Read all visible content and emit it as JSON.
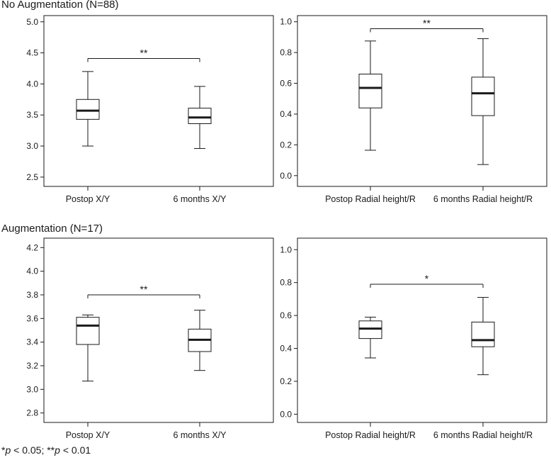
{
  "titles": {
    "top": "No Augmentation (N=88)",
    "bottom": "Augmentation (N=17)"
  },
  "footnote": {
    "star1": "*",
    "p1": "p",
    "t1": " < 0.05; **",
    "p2": "p",
    "t2": " < 0.01"
  },
  "colors": {
    "stroke": "#1a1a1a",
    "background": "#ffffff"
  },
  "chart_data": [
    {
      "type": "box",
      "panel": "top-left",
      "group": "No Augmentation (N=88)",
      "categories": [
        "Postop X/Y",
        "6 months X/Y"
      ],
      "boxes": [
        {
          "whisker_low": 3.0,
          "q1": 3.43,
          "median": 3.57,
          "q3": 3.75,
          "whisker_high": 4.2
        },
        {
          "whisker_low": 2.96,
          "q1": 3.36,
          "median": 3.46,
          "q3": 3.61,
          "whisker_high": 3.96
        }
      ],
      "ylim": [
        2.35,
        5.1
      ],
      "yticks": [
        "2.5",
        "3.0",
        "3.5",
        "4.0",
        "4.5",
        "5.0"
      ],
      "significance": {
        "label": "**",
        "y": 4.41
      }
    },
    {
      "type": "box",
      "panel": "top-right",
      "group": "No Augmentation (N=88)",
      "categories": [
        "Postop Radial height/R",
        "6 months Radial height/R"
      ],
      "boxes": [
        {
          "whisker_low": 0.165,
          "q1": 0.44,
          "median": 0.57,
          "q3": 0.66,
          "whisker_high": 0.875
        },
        {
          "whisker_low": 0.072,
          "q1": 0.39,
          "median": 0.535,
          "q3": 0.64,
          "whisker_high": 0.89
        }
      ],
      "ylim": [
        -0.07,
        1.04
      ],
      "yticks": [
        "0.0",
        "0.2",
        "0.4",
        "0.6",
        "0.8",
        "1.0"
      ],
      "significance": {
        "label": "**",
        "y": 0.955
      }
    },
    {
      "type": "box",
      "panel": "bottom-left",
      "group": "Augmentation (N=17)",
      "categories": [
        "Postop X/Y",
        "6 months X/Y"
      ],
      "boxes": [
        {
          "whisker_low": 3.07,
          "q1": 3.38,
          "median": 3.54,
          "q3": 3.61,
          "whisker_high": 3.63
        },
        {
          "whisker_low": 3.16,
          "q1": 3.32,
          "median": 3.42,
          "q3": 3.51,
          "whisker_high": 3.67
        }
      ],
      "ylim": [
        2.72,
        4.28
      ],
      "yticks": [
        "2.8",
        "3.0",
        "3.2",
        "3.4",
        "3.6",
        "3.8",
        "4.0",
        "4.2"
      ],
      "significance": {
        "label": "**",
        "y": 3.8
      }
    },
    {
      "type": "box",
      "panel": "bottom-right",
      "group": "Augmentation (N=17)",
      "categories": [
        "Postop Radial height/R",
        "6 months Radial height/R"
      ],
      "boxes": [
        {
          "whisker_low": 0.342,
          "q1": 0.46,
          "median": 0.52,
          "q3": 0.567,
          "whisker_high": 0.59
        },
        {
          "whisker_low": 0.24,
          "q1": 0.41,
          "median": 0.45,
          "q3": 0.56,
          "whisker_high": 0.71
        }
      ],
      "ylim": [
        -0.05,
        1.07
      ],
      "yticks": [
        "0.0",
        "0.2",
        "0.4",
        "0.6",
        "0.8",
        "1.0"
      ],
      "significance": {
        "label": "*",
        "y": 0.79
      }
    }
  ]
}
